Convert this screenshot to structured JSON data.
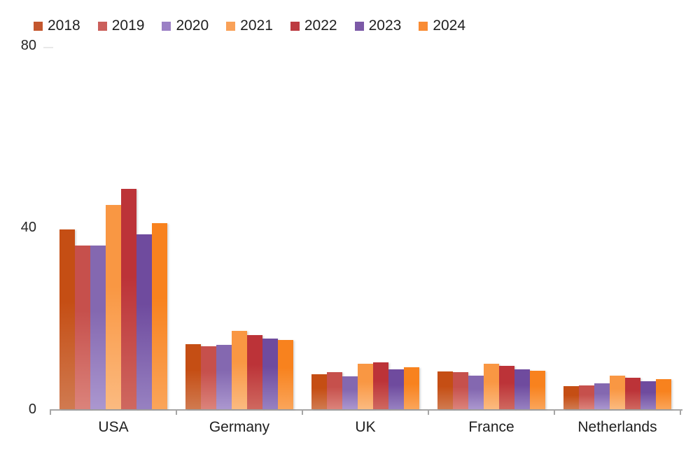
{
  "page": {
    "background": "#ffffff",
    "axis_color": "#a6a6a6",
    "text_color": "#1f1f1f"
  },
  "y_axis": {
    "tick_labels": [
      "80",
      "40",
      "0"
    ],
    "tick_values": [
      80,
      40,
      0
    ]
  },
  "chart_data": {
    "type": "bar",
    "grouped": true,
    "title": "",
    "xlabel": "",
    "ylabel": "",
    "ylim": [
      0,
      80
    ],
    "grid": false,
    "legend_position": "top-left",
    "categories": [
      "USA",
      "Germany",
      "UK",
      "France",
      "Netherlands"
    ],
    "series": [
      {
        "name": "2018",
        "values": [
          39.5,
          14.3,
          7.7,
          8.3,
          5.1
        ],
        "swatch": "#C4572E",
        "color_top": "#C54E14",
        "color_bottom": "#D07A50"
      },
      {
        "name": "2019",
        "values": [
          36.0,
          13.8,
          8.2,
          8.2,
          5.2
        ],
        "swatch": "#CB5F5B",
        "color_top": "#C6504C",
        "color_bottom": "#DB837B"
      },
      {
        "name": "2020",
        "values": [
          36.0,
          14.2,
          7.2,
          7.4,
          5.7
        ],
        "swatch": "#9B80C5",
        "color_top": "#8468B0",
        "color_bottom": "#AB97CF"
      },
      {
        "name": "2021",
        "values": [
          45.0,
          17.3,
          10.0,
          10.0,
          7.4
        ],
        "swatch": "#F9A158",
        "color_top": "#F99743",
        "color_bottom": "#FBBA80"
      },
      {
        "name": "2022",
        "values": [
          48.5,
          16.3,
          10.3,
          9.5,
          6.9
        ],
        "swatch": "#BC3B41",
        "color_top": "#BC3338",
        "color_bottom": "#CF685F"
      },
      {
        "name": "2023",
        "values": [
          38.5,
          15.5,
          8.8,
          8.8,
          6.2
        ],
        "swatch": "#7C59A7",
        "color_top": "#6F4B9E",
        "color_bottom": "#9781C1"
      },
      {
        "name": "2024",
        "values": [
          41.0,
          15.2,
          9.2,
          8.5,
          6.6
        ],
        "swatch": "#F98B33",
        "color_top": "#F8821E",
        "color_bottom": "#FAA55A"
      }
    ]
  }
}
